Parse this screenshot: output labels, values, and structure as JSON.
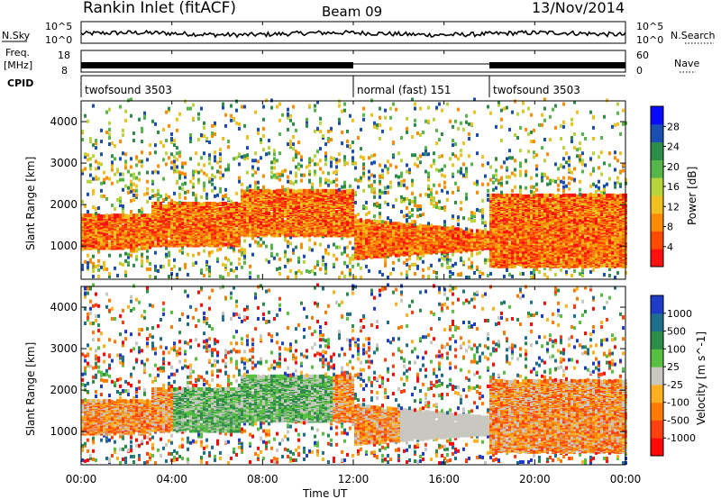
{
  "header": {
    "station": "Rankin Inlet (fitACF)",
    "beam": "Beam 09",
    "date": "13/Nov/2014"
  },
  "top_panels": {
    "nsky_label": "N.Sky",
    "nsky_ticks": [
      "10^5",
      "10^0"
    ],
    "nsearch_label": "N.Search",
    "nsearch_ticks": [
      "10^5",
      "10^0"
    ],
    "freq_label": "Freq.",
    "freq_unit": "[MHz]",
    "freq_ticks": [
      "18",
      "8"
    ],
    "nave_label": "Nave",
    "nave_ticks": [
      "60",
      "0"
    ],
    "cpid_label": "CPID",
    "cpid_segments": [
      {
        "label": "twofsound 3503",
        "start": 0,
        "end": 12
      },
      {
        "label": "normal (fast) 151",
        "start": 12,
        "end": 18
      },
      {
        "label": "twofsound 3503",
        "start": 18,
        "end": 24
      }
    ]
  },
  "chart_data": [
    {
      "type": "heatmap",
      "panel": "power",
      "ylabel": "Slant Range [km]",
      "yticks": [
        1000,
        2000,
        3000,
        4000
      ],
      "ylim": [
        200,
        4500
      ],
      "xlim": [
        0,
        24
      ],
      "colorbar_label": "Power [dB]",
      "colorbar_ticks": [
        "28",
        "24",
        "20",
        "16",
        "12",
        "8",
        "4"
      ],
      "colorbar_colors": [
        "#0a0aff",
        "#1a4fb0",
        "#2e8c4a",
        "#56b64a",
        "#b8d43c",
        "#f0c020",
        "#ff8c00",
        "#ff4a00",
        "#ff1010"
      ],
      "description_regions": [
        {
          "t0": 0.0,
          "t1": 3.0,
          "r0": 900,
          "r1": 1700,
          "level": "high"
        },
        {
          "t0": 3.0,
          "t1": 7.0,
          "r0": 1000,
          "r1": 2000,
          "level": "high"
        },
        {
          "t0": 13.0,
          "t1": 18.0,
          "r0": 700,
          "r1": 1500,
          "level": "high"
        },
        {
          "t0": 18.0,
          "t1": 24.0,
          "r0": 500,
          "r1": 2200,
          "level": "high"
        }
      ]
    },
    {
      "type": "heatmap",
      "panel": "velocity",
      "ylabel": "Slant Range [km]",
      "yticks": [
        1000,
        2000,
        3000,
        4000
      ],
      "ylim": [
        200,
        4500
      ],
      "xlim": [
        0,
        24
      ],
      "xticks": [
        "00:00",
        "04:00",
        "08:00",
        "12:00",
        "16:00",
        "20:00",
        "00:00"
      ],
      "xlabel": "Time UT",
      "colorbar_label": "Velocity [m s^-1]",
      "colorbar_ticks": [
        "1000",
        "500",
        "100",
        "25",
        "-25",
        "-100",
        "-500",
        "-1000"
      ],
      "colorbar_colors": [
        "#1e3cc8",
        "#1f6e8c",
        "#2e8c4a",
        "#58c040",
        "#c8c8c0",
        "#ffb020",
        "#ff7a00",
        "#ff4010",
        "#ff0808"
      ]
    }
  ]
}
